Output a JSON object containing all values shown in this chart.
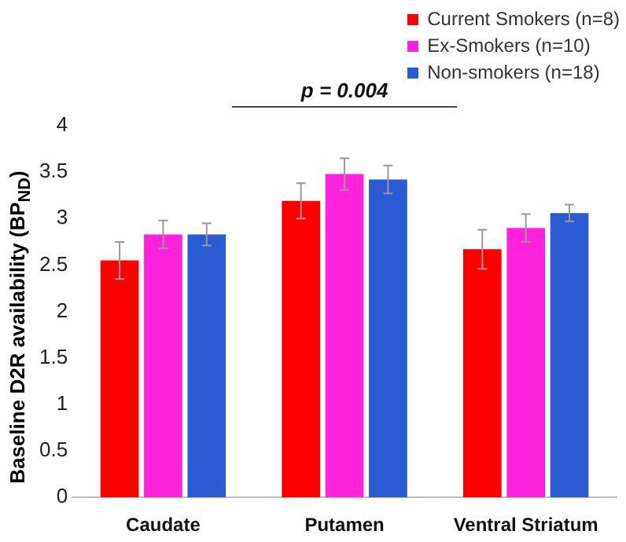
{
  "chart_data": {
    "type": "bar",
    "ylabel": "Baseline D2R availability (BP$_{ND}$)",
    "categories": [
      "Caudate",
      "Putamen",
      "Ventral Striatum"
    ],
    "series": [
      {
        "name": "Current Smokers (n=8)",
        "color": "#ff0000",
        "values": [
          2.55,
          3.19,
          2.67
        ],
        "errors": [
          0.2,
          0.19,
          0.21
        ]
      },
      {
        "name": "Ex-Smokers (n=10)",
        "color": "#ff22dd",
        "values": [
          2.83,
          3.48,
          2.9
        ],
        "errors": [
          0.15,
          0.17,
          0.15
        ]
      },
      {
        "name": "Non-smokers (n=18)",
        "color": "#2b5bd3",
        "values": [
          2.83,
          3.42,
          3.06
        ],
        "errors": [
          0.12,
          0.15,
          0.09
        ]
      }
    ],
    "ylim": [
      0,
      4
    ],
    "yticks": [
      0,
      0.5,
      1,
      1.5,
      2,
      2.5,
      3,
      3.5,
      4
    ],
    "grid": false,
    "legend": "top right",
    "annotations": [
      "p = 0.004"
    ]
  }
}
